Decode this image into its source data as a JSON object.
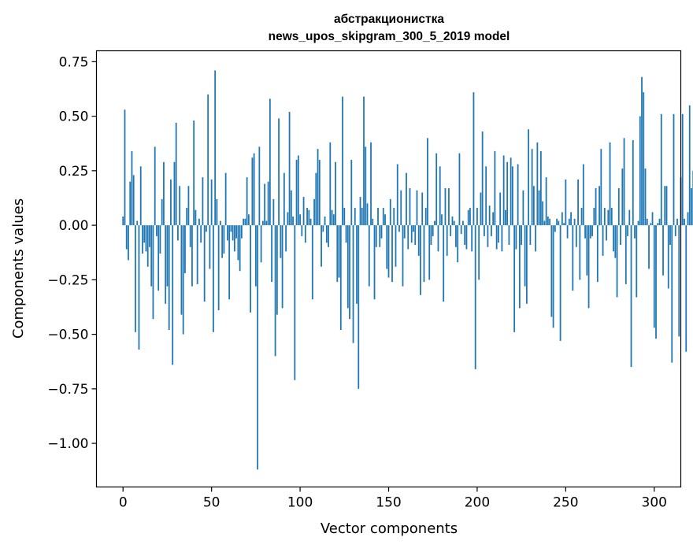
{
  "chart_data": {
    "type": "bar",
    "title_line1": "абстракционистка",
    "title_line2": "news_upos_skipgram_300_5_2019 model",
    "xlabel": "Vector components",
    "ylabel": "Components values",
    "xlim": [
      -15,
      315
    ],
    "ylim": [
      -1.2,
      0.8
    ],
    "xticks": [
      "0",
      "50",
      "100",
      "150",
      "200",
      "250",
      "300"
    ],
    "yticks": [
      "−1.00",
      "−0.75",
      "−0.50",
      "−0.25",
      "0.00",
      "0.25",
      "0.50",
      "0.75"
    ],
    "bar_color": "#1f77b4",
    "values": [
      0.04,
      0.53,
      -0.11,
      -0.16,
      0.2,
      0.34,
      0.23,
      -0.49,
      0.02,
      -0.57,
      0.27,
      -0.13,
      -0.08,
      -0.12,
      -0.19,
      -0.1,
      -0.28,
      -0.43,
      0.36,
      -0.05,
      -0.3,
      -0.13,
      0.12,
      0.29,
      -0.36,
      -0.28,
      -0.48,
      0.21,
      -0.64,
      0.29,
      0.47,
      -0.07,
      0.18,
      -0.41,
      -0.5,
      -0.22,
      0.08,
      0.18,
      -0.1,
      -0.28,
      0.48,
      0.07,
      -0.27,
      0.03,
      -0.08,
      0.22,
      -0.35,
      -0.03,
      0.6,
      -0.2,
      0.21,
      -0.49,
      0.71,
      0.12,
      -0.39,
      0.02,
      -0.15,
      -0.13,
      0.24,
      -0.07,
      -0.34,
      -0.03,
      -0.07,
      -0.12,
      -0.06,
      -0.16,
      -0.21,
      -0.06,
      0.03,
      0.03,
      0.22,
      0.05,
      -0.4,
      0.31,
      0.33,
      -0.28,
      -1.12,
      0.36,
      -0.17,
      0.02,
      0.19,
      0.02,
      0.2,
      0.58,
      -0.26,
      0.12,
      -0.6,
      -0.41,
      0.49,
      -0.15,
      -0.38,
      0.24,
      -0.12,
      0.06,
      0.52,
      0.16,
      0.04,
      -0.71,
      0.3,
      0.32,
      0.05,
      -0.05,
      0.13,
      -0.08,
      0.08,
      0.07,
      0.03,
      -0.34,
      0.12,
      0.24,
      0.35,
      0.3,
      -0.19,
      -0.03,
      0.04,
      -0.08,
      -0.1,
      0.38,
      0.07,
      0.05,
      0.29,
      -0.26,
      -0.24,
      -0.48,
      0.59,
      0.08,
      -0.08,
      -0.38,
      -0.43,
      0.3,
      -0.54,
      0.08,
      -0.36,
      -0.75,
      0.13,
      0.08,
      0.59,
      0.36,
      0.1,
      -0.28,
      0.38,
      0.03,
      -0.34,
      -0.1,
      0.08,
      -0.1,
      -0.06,
      0.08,
      0.05,
      -0.2,
      -0.24,
      0.12,
      -0.26,
      0.08,
      -0.19,
      0.28,
      -0.03,
      0.16,
      -0.28,
      -0.06,
      0.24,
      -0.11,
      0.17,
      -0.08,
      -0.03,
      -0.09,
      0.16,
      -0.14,
      -0.32,
      0.15,
      -0.26,
      0.08,
      0.4,
      -0.25,
      -0.09,
      -0.05,
      0.02,
      0.33,
      -0.12,
      0.27,
      0.05,
      -0.35,
      0.17,
      -0.14,
      0.17,
      -0.05,
      0.04,
      0.02,
      -0.1,
      -0.17,
      0.33,
      -0.04,
      0.02,
      -0.09,
      -0.11,
      0.07,
      0.08,
      -0.12,
      0.61,
      -0.66,
      0.08,
      -0.25,
      0.15,
      0.43,
      -0.05,
      0.27,
      -0.1,
      0.09,
      -0.05,
      0.06,
      0.34,
      -0.11,
      -0.08,
      0.15,
      -0.12,
      0.32,
      0.07,
      0.29,
      -0.09,
      0.31,
      0.27,
      -0.49,
      -0.11,
      0.28,
      -0.38,
      -0.09,
      0.16,
      -0.28,
      -0.36,
      0.44,
      -0.09,
      0.35,
      0.18,
      -0.12,
      0.38,
      0.16,
      0.34,
      0.11,
      0.02,
      0.22,
      0.04,
      0.03,
      -0.42,
      -0.47,
      -0.03,
      0.03,
      0.02,
      -0.53,
      0.06,
      0.01,
      0.21,
      -0.06,
      0.03,
      0.06,
      -0.3,
      0.03,
      -0.1,
      0.21,
      -0.25,
      0.08,
      0.28,
      -0.06,
      -0.23,
      -0.38,
      -0.06,
      -0.05,
      0.08,
      0.17,
      -0.26,
      0.18,
      0.35,
      -0.14,
      0.08,
      -0.07,
      0.07,
      0.38,
      0.08,
      -0.12,
      -0.15,
      -0.33,
      0.17,
      -0.09,
      0.26,
      0.4,
      -0.27,
      -0.05,
      0.07,
      -0.65,
      0.39,
      -0.06,
      -0.33,
      0.02,
      0.5,
      0.68,
      0.61,
      0.26,
      0.03,
      -0.2,
      0.01,
      0.06,
      -0.47,
      -0.52,
      0.01,
      0.03,
      0.51,
      -0.23,
      0.18,
      0.18,
      -0.29,
      -0.09,
      -0.63,
      0.51,
      -0.05,
      0.03,
      -0.51,
      0.22,
      0.51,
      0.03,
      -0.58,
      0.06,
      0.55,
      0.17,
      0.25
    ]
  }
}
